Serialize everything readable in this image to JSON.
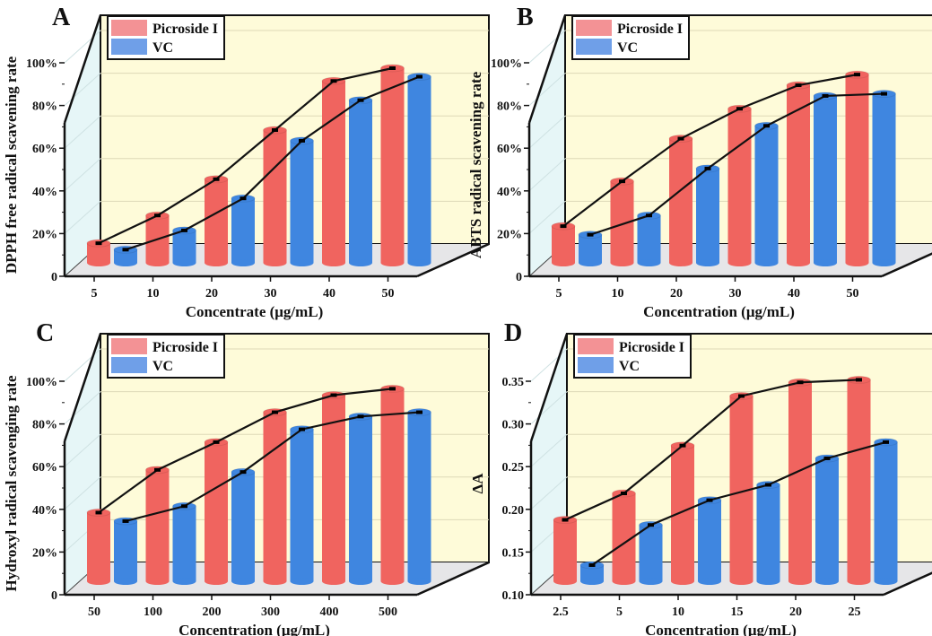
{
  "figure": {
    "colors": {
      "picroside": "#f0645f",
      "picroside_legend": "#f39295",
      "vc": "#3f86e0",
      "vc_legend": "#6f9fe8",
      "back_wall": "#fefbd9",
      "side_wall": "#e6f6f7",
      "floor": "#e6e6e8",
      "line": "#111111"
    },
    "legend": [
      "Picroside I",
      "VC"
    ]
  },
  "chart_data": [
    {
      "panel": "A",
      "type": "bar",
      "style": "3d-cylinder-with-line",
      "categories": [
        "5",
        "10",
        "20",
        "30",
        "40",
        "50"
      ],
      "series": [
        {
          "name": "Picroside I",
          "values": [
            18,
            31,
            48,
            71,
            94,
            100
          ]
        },
        {
          "name": "VC",
          "values": [
            15,
            24,
            39,
            66,
            85,
            96
          ]
        }
      ],
      "xlabel": "Concentrate (μg/mL)",
      "ylabel": "DPPH free radical scavening rate",
      "yticks": [
        "0",
        "20%",
        "40%",
        "60%",
        "80%",
        "100%"
      ],
      "ylim": [
        0,
        100
      ],
      "grid": true,
      "legend_position": "top-left"
    },
    {
      "panel": "B",
      "type": "bar",
      "style": "3d-cylinder-with-line",
      "categories": [
        "5",
        "10",
        "20",
        "30",
        "40",
        "50"
      ],
      "series": [
        {
          "name": "Picroside I",
          "values": [
            26,
            47,
            67,
            81,
            92,
            97
          ]
        },
        {
          "name": "VC",
          "values": [
            22,
            31,
            53,
            73,
            87,
            88
          ]
        }
      ],
      "xlabel": "Concentration (μg/mL)",
      "ylabel": "ABTS radical scavening rate",
      "yticks": [
        "0",
        "20%",
        "40%",
        "60%",
        "80%",
        "100%"
      ],
      "ylim": [
        0,
        100
      ],
      "grid": true,
      "legend_position": "top-left"
    },
    {
      "panel": "C",
      "type": "bar",
      "style": "3d-cylinder-with-line",
      "categories": [
        "50",
        "100",
        "200",
        "300",
        "400",
        "500"
      ],
      "series": [
        {
          "name": "Picroside I",
          "values": [
            41,
            61,
            74,
            88,
            96,
            99
          ]
        },
        {
          "name": "VC",
          "values": [
            37,
            44,
            60,
            80,
            86,
            88
          ]
        }
      ],
      "xlabel": "Concentration (μg/mL)",
      "ylabel": "Hydroxyl radical scavenging rate",
      "yticks": [
        "0",
        "20%",
        "40%",
        "60%",
        "80%",
        "100%"
      ],
      "ylim": [
        0,
        100
      ],
      "grid": true,
      "legend_position": "top-left"
    },
    {
      "panel": "D",
      "type": "bar",
      "style": "3d-cylinder-with-line",
      "categories": [
        "2.5",
        "5",
        "10",
        "15",
        "20",
        "25"
      ],
      "series": [
        {
          "name": "Picroside I",
          "values": [
            0.194,
            0.225,
            0.281,
            0.339,
            0.355,
            0.358
          ]
        },
        {
          "name": "VC",
          "values": [
            0.141,
            0.188,
            0.217,
            0.235,
            0.266,
            0.285
          ]
        }
      ],
      "xlabel": "Concentration (μg/mL)",
      "ylabel": "ΔA",
      "yticks": [
        "0.10",
        "0.15",
        "0.20",
        "0.25",
        "0.30",
        "0.35"
      ],
      "ylim": [
        0.1,
        0.375
      ],
      "grid": true,
      "legend_position": "top-left"
    }
  ]
}
